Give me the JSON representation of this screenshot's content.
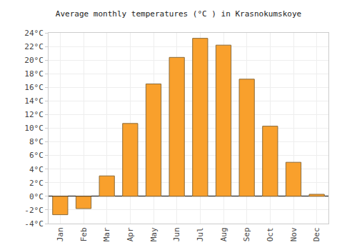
{
  "chart_data": {
    "type": "bar",
    "title": "Average monthly temperatures (°C ) in Krasnokumskoye",
    "categories": [
      "Jan",
      "Feb",
      "Mar",
      "Apr",
      "May",
      "Jun",
      "Jul",
      "Aug",
      "Sep",
      "Oct",
      "Nov",
      "Dec"
    ],
    "values": [
      -2.7,
      -1.8,
      3.0,
      10.7,
      16.5,
      20.4,
      23.2,
      22.2,
      17.2,
      10.3,
      5.0,
      0.3
    ],
    "color": "#f9a02c",
    "ylim": [
      -4,
      24
    ],
    "yticks": [
      {
        "value": -4,
        "label": "-4°C"
      },
      {
        "value": -2,
        "label": "-2°C"
      },
      {
        "value": 0,
        "label": "0°C"
      },
      {
        "value": 2,
        "label": "2°C"
      },
      {
        "value": 4,
        "label": "4°C"
      },
      {
        "value": 6,
        "label": "6°C"
      },
      {
        "value": 8,
        "label": "8°C"
      },
      {
        "value": 10,
        "label": "10°C"
      },
      {
        "value": 12,
        "label": "12°C"
      },
      {
        "value": 14,
        "label": "14°C"
      },
      {
        "value": 16,
        "label": "16°C"
      },
      {
        "value": 18,
        "label": "18°C"
      },
      {
        "value": 20,
        "label": "20°C"
      },
      {
        "value": 22,
        "label": "22°C"
      },
      {
        "value": 24,
        "label": "24°C"
      }
    ],
    "grid": true
  }
}
